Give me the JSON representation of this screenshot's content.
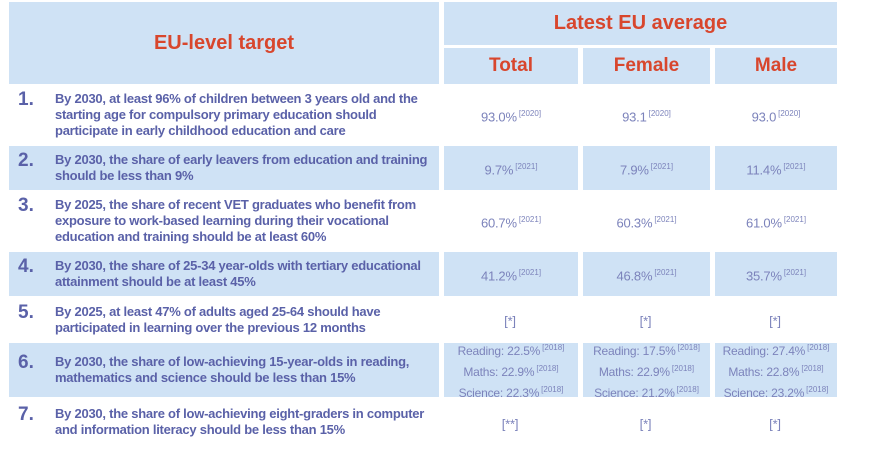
{
  "colors": {
    "accent_red": "#d8462d",
    "text_purple": "#5a61a8",
    "value_purple": "#7c83bb",
    "cell_blue": "#cfe2f5"
  },
  "table": {
    "header": {
      "target": "EU-level target",
      "average": "Latest EU average",
      "columns": [
        "Total",
        "Female",
        "Male"
      ]
    },
    "rows": [
      {
        "num": "1.",
        "target": "By 2030, at least 96% of children between 3 years old and the starting age for compulsory primary education should participate in early childhood education and care",
        "cells": [
          {
            "lines": [
              {
                "text": "93.0%",
                "sup": "[2020]"
              }
            ]
          },
          {
            "lines": [
              {
                "text": "93.1",
                "sup": "[2020]"
              }
            ]
          },
          {
            "lines": [
              {
                "text": "93.0",
                "sup": "[2020]"
              }
            ]
          }
        ]
      },
      {
        "num": "2.",
        "target": "By 2030, the share of early leavers from education and training should be less than 9%",
        "cells": [
          {
            "lines": [
              {
                "text": "9.7%",
                "sup": "[2021]"
              }
            ]
          },
          {
            "lines": [
              {
                "text": "7.9%",
                "sup": "[2021]"
              }
            ]
          },
          {
            "lines": [
              {
                "text": "11.4%",
                "sup": "[2021]"
              }
            ]
          }
        ]
      },
      {
        "num": "3.",
        "target": "By 2025, the share of recent VET graduates who benefit from exposure to work-based learning during their vocational education and training should be at least 60%",
        "cells": [
          {
            "lines": [
              {
                "text": "60.7%",
                "sup": "[2021]"
              }
            ]
          },
          {
            "lines": [
              {
                "text": "60.3%",
                "sup": "[2021]"
              }
            ]
          },
          {
            "lines": [
              {
                "text": "61.0%",
                "sup": "[2021]"
              }
            ]
          }
        ]
      },
      {
        "num": "4.",
        "target": "By 2030, the share of 25-34 year-olds with tertiary educational attainment should be at least 45%",
        "cells": [
          {
            "lines": [
              {
                "text": "41.2%",
                "sup": "[2021]"
              }
            ]
          },
          {
            "lines": [
              {
                "text": "46.8%",
                "sup": "[2021]"
              }
            ]
          },
          {
            "lines": [
              {
                "text": "35.7%",
                "sup": "[2021]"
              }
            ]
          }
        ]
      },
      {
        "num": "5.",
        "target": "By 2025, at least 47% of adults aged 25-64 should have participated in learning over the previous 12 months",
        "cells": [
          {
            "lines": [
              {
                "text": "[*]",
                "sup": ""
              }
            ]
          },
          {
            "lines": [
              {
                "text": "[*]",
                "sup": ""
              }
            ]
          },
          {
            "lines": [
              {
                "text": "[*]",
                "sup": ""
              }
            ]
          }
        ]
      },
      {
        "num": "6.",
        "target": "By 2030, the share of low-achieving 15-year-olds in reading, mathematics and science should be less than 15%",
        "cells": [
          {
            "lines": [
              {
                "text": "Reading: 22.5%",
                "sup": "[2018]"
              },
              {
                "text": "Maths: 22.9%",
                "sup": "[2018]"
              },
              {
                "text": "Science: 22.3%",
                "sup": "[2018]"
              }
            ]
          },
          {
            "lines": [
              {
                "text": "Reading: 17.5%",
                "sup": "[2018]"
              },
              {
                "text": "Maths: 22.9%",
                "sup": "[2018]"
              },
              {
                "text": "Science: 21.2%",
                "sup": "[2018]"
              }
            ]
          },
          {
            "lines": [
              {
                "text": "Reading: 27.4%",
                "sup": "[2018]"
              },
              {
                "text": "Maths: 22.8%",
                "sup": "[2018]"
              },
              {
                "text": "Science: 23.2%",
                "sup": "[2018]"
              }
            ]
          }
        ]
      },
      {
        "num": "7.",
        "target": "By 2030, the share of low-achieving eight-graders in computer and information literacy should be less than 15%",
        "cells": [
          {
            "lines": [
              {
                "text": "[**]",
                "sup": ""
              }
            ]
          },
          {
            "lines": [
              {
                "text": "[*]",
                "sup": ""
              }
            ]
          },
          {
            "lines": [
              {
                "text": "[*]",
                "sup": ""
              }
            ]
          }
        ]
      }
    ]
  }
}
